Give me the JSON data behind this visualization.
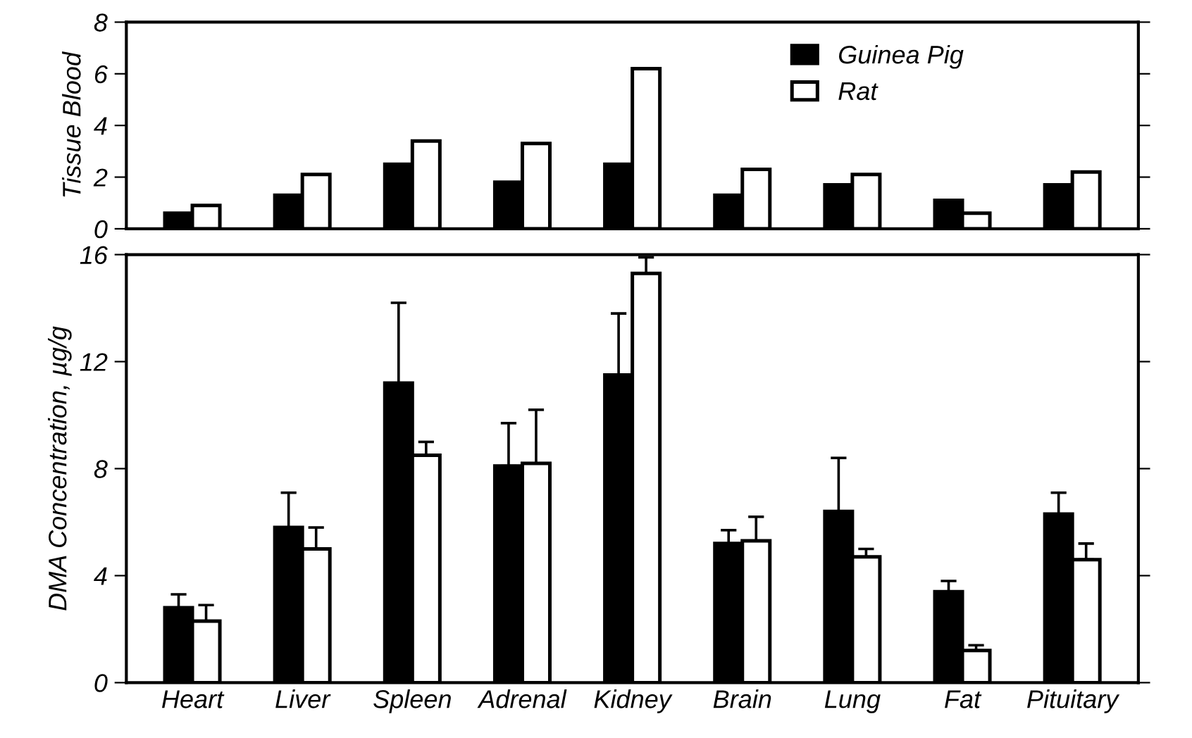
{
  "chart_data": [
    {
      "type": "bar",
      "ylabel": "Tissue Blood",
      "categories": [
        null,
        null,
        null,
        null,
        null,
        null,
        null,
        null,
        null
      ],
      "series": [
        {
          "name": "Guinea Pig",
          "color": "#000000",
          "values": [
            0.6,
            1.3,
            2.5,
            1.8,
            2.5,
            1.3,
            1.7,
            1.1,
            1.7
          ]
        },
        {
          "name": "Rat",
          "color": "#ffffff",
          "values": [
            0.9,
            2.1,
            3.4,
            3.3,
            6.2,
            2.3,
            2.1,
            0.6,
            2.2
          ]
        }
      ],
      "ylim": [
        0,
        8
      ],
      "yticks": [
        0,
        2,
        4,
        6,
        8
      ],
      "tick_labels": "y",
      "legend": "top right",
      "grid": false
    },
    {
      "type": "bar",
      "ylabel": "DMA Concentration, µg/g",
      "categories": [
        "Heart",
        "Liver",
        "Spleen",
        "Adrenal",
        "Kidney",
        "Brain",
        "Lung",
        "Fat",
        "Pituitary"
      ],
      "series": [
        {
          "color": "#000000",
          "values": [
            2.8,
            5.8,
            11.2,
            8.1,
            11.5,
            5.2,
            6.4,
            3.4,
            6.3
          ],
          "errors": [
            [
              2.8,
              3.3
            ],
            [
              5.8,
              7.1
            ],
            [
              11.2,
              14.2
            ],
            [
              8.1,
              9.7
            ],
            [
              11.5,
              13.8
            ],
            [
              5.2,
              5.7
            ],
            [
              6.4,
              8.4
            ],
            [
              3.4,
              3.8
            ],
            [
              6.3,
              7.1
            ]
          ]
        },
        {
          "color": "#ffffff",
          "values": [
            2.3,
            5.0,
            8.5,
            8.2,
            15.3,
            5.3,
            4.7,
            1.2,
            4.6
          ],
          "errors": [
            [
              2.3,
              2.9
            ],
            [
              5.0,
              5.8
            ],
            [
              8.5,
              9.0
            ],
            [
              8.2,
              10.2
            ],
            [
              15.3,
              15.9
            ],
            [
              5.3,
              6.2
            ],
            [
              4.7,
              5.0
            ],
            [
              1.2,
              1.4
            ],
            [
              4.6,
              5.2
            ]
          ]
        }
      ],
      "ylim": [
        0,
        16
      ],
      "yticks": [
        0,
        4,
        8,
        12,
        16
      ],
      "grid": false
    }
  ]
}
